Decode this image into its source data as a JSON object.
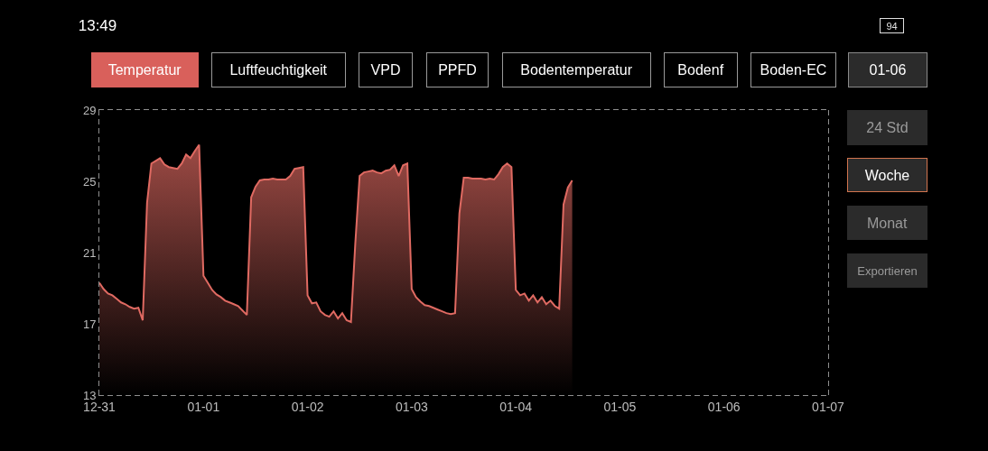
{
  "chart_data": {
    "type": "area",
    "annotations": [
      "13:49",
      "94",
      "Temperatur",
      "Luftfeuchtigkeit",
      "VPD",
      "PPFD",
      "Bodentemperatur",
      "Bodenf",
      "Boden-EC",
      "01-06",
      "24 Std",
      "Woche",
      "Monat",
      "Exportieren"
    ],
    "categories": [
      "12-31",
      null,
      null,
      null,
      null,
      null,
      null,
      null,
      null,
      null,
      null,
      null,
      null,
      null,
      null,
      null,
      null,
      null,
      null,
      null,
      null,
      null,
      null,
      null,
      "01-01",
      null,
      null,
      null,
      null,
      null,
      null,
      null,
      null,
      null,
      null,
      null,
      null,
      null,
      null,
      null,
      null,
      null,
      null,
      null,
      null,
      null,
      null,
      null,
      "01-02",
      null,
      null,
      null,
      null,
      null,
      null,
      null,
      null,
      null,
      null,
      null,
      null,
      null,
      null,
      null,
      null,
      null,
      null,
      null,
      null,
      null,
      null,
      null,
      "01-03",
      null,
      null,
      null,
      null,
      null,
      null,
      null,
      null,
      null,
      null,
      null,
      null,
      null,
      null,
      null,
      null,
      null,
      null,
      null,
      null,
      null,
      null,
      null,
      "01-04",
      null,
      null,
      null,
      null,
      null,
      null,
      null,
      null,
      null,
      null,
      null,
      null,
      null,
      null,
      null,
      null,
      null,
      null,
      null,
      null,
      null,
      null,
      null,
      "01-05",
      null,
      null,
      null,
      null,
      null,
      null,
      null,
      null,
      null,
      null,
      null,
      null,
      null,
      null,
      null,
      null,
      null,
      null,
      null,
      null,
      null,
      null,
      null,
      "01-06",
      null,
      null,
      null,
      null,
      null,
      null,
      null,
      null,
      null,
      null,
      null,
      null,
      null,
      null,
      null,
      null,
      null,
      null,
      null,
      null,
      null,
      null,
      null,
      "01-07"
    ],
    "ylim": [
      13,
      29
    ],
    "yticks": [
      13,
      17,
      21,
      25,
      29
    ],
    "series": [
      {
        "color": "#e06a62",
        "values": [
          19.3,
          18.95,
          18.7,
          18.6,
          18.4,
          18.2,
          18.1,
          17.95,
          17.85,
          17.9,
          17.2,
          23.8,
          26.0,
          26.15,
          26.3,
          25.95,
          25.8,
          25.75,
          25.7,
          26.0,
          26.5,
          26.3,
          26.7,
          27.05,
          19.7,
          19.3,
          18.9,
          18.65,
          18.5,
          18.3,
          18.2,
          18.1,
          18.0,
          17.75,
          17.5,
          24.1,
          24.7,
          25.05,
          25.1,
          25.1,
          25.15,
          25.1,
          25.1,
          25.1,
          25.3,
          25.7,
          25.75,
          25.8,
          18.6,
          18.15,
          18.2,
          17.7,
          17.5,
          17.4,
          17.7,
          17.3,
          17.6,
          17.2,
          17.1,
          21.5,
          25.3,
          25.5,
          25.55,
          25.6,
          25.5,
          25.45,
          25.6,
          25.65,
          25.9,
          25.3,
          25.9,
          26.0,
          18.95,
          18.5,
          18.25,
          18.05,
          18.0,
          17.9,
          17.8,
          17.7,
          17.6,
          17.55,
          17.6,
          23.2,
          25.2,
          25.2,
          25.15,
          25.15,
          25.15,
          25.1,
          25.15,
          25.1,
          25.4,
          25.8,
          26.0,
          25.8,
          18.9,
          18.6,
          18.7,
          18.3,
          18.6,
          18.2,
          18.5,
          18.1,
          18.3,
          18.0,
          17.85,
          23.7,
          24.65,
          25.05,
          null,
          null,
          null,
          null,
          null,
          null,
          null,
          null,
          null,
          null,
          null,
          null,
          null,
          null,
          null,
          null,
          null,
          null,
          null,
          null,
          null,
          null,
          null,
          null,
          null,
          null,
          null,
          null,
          null,
          null,
          null,
          null,
          null,
          null,
          null,
          null,
          null,
          null,
          null,
          null,
          null,
          null,
          null,
          null,
          null,
          null,
          null,
          null,
          null,
          null,
          null,
          null,
          null,
          null,
          null,
          null,
          null,
          null,
          null
        ]
      }
    ]
  }
}
